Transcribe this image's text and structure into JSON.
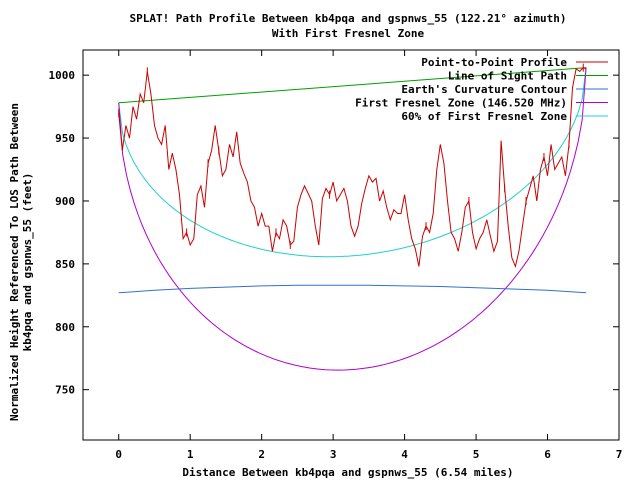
{
  "chart_data": {
    "type": "line",
    "title": "SPLAT! Path Profile Between kb4pqa and gspnws_55 (122.21° azimuth)",
    "subtitle": "With First Fresnel Zone",
    "xlabel": "Distance Between kb4pqa and gspnws_55 (6.54 miles)",
    "ylabel_line1": "Normalized Height Referenced To LOS Path Between",
    "ylabel_line2": "kb4pqa and gspnws_55 (feet)",
    "xlim": [
      -0.5,
      7
    ],
    "ylim": [
      710,
      1020
    ],
    "xticks": [
      0,
      1,
      2,
      3,
      4,
      5,
      6,
      7
    ],
    "yticks": [
      750,
      800,
      850,
      900,
      950,
      1000
    ],
    "grid": false,
    "legend_position": "top-right",
    "series": [
      {
        "name": "Point-to-Point Profile",
        "color": "#cc0000",
        "x": [
          0.0,
          0.05,
          0.1,
          0.15,
          0.2,
          0.25,
          0.3,
          0.35,
          0.4,
          0.45,
          0.5,
          0.55,
          0.6,
          0.65,
          0.7,
          0.75,
          0.8,
          0.85,
          0.9,
          0.95,
          1.0,
          1.05,
          1.1,
          1.15,
          1.2,
          1.25,
          1.3,
          1.35,
          1.4,
          1.45,
          1.5,
          1.55,
          1.6,
          1.65,
          1.7,
          1.75,
          1.8,
          1.85,
          1.9,
          1.95,
          2.0,
          2.05,
          2.1,
          2.15,
          2.2,
          2.25,
          2.3,
          2.35,
          2.4,
          2.45,
          2.5,
          2.55,
          2.6,
          2.65,
          2.7,
          2.75,
          2.8,
          2.85,
          2.9,
          2.95,
          3.0,
          3.05,
          3.1,
          3.15,
          3.2,
          3.25,
          3.3,
          3.35,
          3.4,
          3.45,
          3.5,
          3.55,
          3.6,
          3.65,
          3.7,
          3.75,
          3.8,
          3.85,
          3.9,
          3.95,
          4.0,
          4.05,
          4.1,
          4.15,
          4.2,
          4.25,
          4.3,
          4.35,
          4.4,
          4.45,
          4.5,
          4.55,
          4.6,
          4.65,
          4.7,
          4.75,
          4.8,
          4.85,
          4.9,
          4.95,
          5.0,
          5.05,
          5.1,
          5.15,
          5.2,
          5.25,
          5.3,
          5.35,
          5.4,
          5.45,
          5.5,
          5.55,
          5.6,
          5.65,
          5.7,
          5.75,
          5.8,
          5.85,
          5.9,
          5.95,
          6.0,
          6.05,
          6.1,
          6.15,
          6.2,
          6.25,
          6.3,
          6.35,
          6.4,
          6.45,
          6.5,
          6.54
        ],
        "y": [
          970,
          940,
          960,
          950,
          975,
          965,
          985,
          978,
          1003,
          985,
          960,
          950,
          945,
          960,
          925,
          938,
          925,
          905,
          870,
          875,
          865,
          870,
          905,
          912,
          895,
          930,
          940,
          960,
          940,
          920,
          925,
          945,
          935,
          955,
          930,
          922,
          915,
          900,
          895,
          880,
          890,
          880,
          880,
          860,
          875,
          870,
          885,
          880,
          865,
          868,
          895,
          905,
          912,
          906,
          900,
          880,
          865,
          902,
          910,
          905,
          915,
          900,
          905,
          910,
          900,
          880,
          872,
          880,
          898,
          910,
          920,
          915,
          918,
          900,
          908,
          895,
          885,
          893,
          890,
          890,
          905,
          885,
          870,
          862,
          848,
          872,
          880,
          875,
          890,
          925,
          945,
          930,
          900,
          875,
          870,
          860,
          875,
          895,
          900,
          875,
          862,
          870,
          875,
          885,
          872,
          860,
          868,
          948,
          910,
          880,
          855,
          848,
          860,
          880,
          900,
          910,
          920,
          900,
          925,
          935,
          920,
          945,
          925,
          930,
          935,
          920,
          945,
          990,
          1005,
          1003,
          1006,
          1005
        ],
        "marker_x": [
          0.0,
          0.4,
          0.95,
          1.25,
          1.4,
          2.2,
          2.4,
          2.95,
          4.3,
          4.9,
          5.4,
          5.7,
          5.95,
          6.3,
          6.5
        ]
      },
      {
        "name": "Line of Sight Path",
        "color": "#00a000",
        "x": [
          0,
          6.54
        ],
        "y": [
          978,
          1006
        ]
      },
      {
        "name": "Earth's Curvature Contour",
        "color": "#3070d0",
        "x": [
          0,
          0.5,
          1.0,
          1.5,
          2.0,
          2.5,
          3.0,
          3.5,
          4.0,
          4.5,
          5.0,
          5.5,
          6.0,
          6.54
        ],
        "y": [
          827,
          829,
          830.5,
          831.5,
          832.5,
          833,
          833,
          833,
          832.5,
          832,
          831,
          830,
          829,
          827
        ]
      },
      {
        "name": "First Fresnel Zone (146.520 MHz)",
        "color": "#b000d0",
        "fresnel_clearance_ft": 226,
        "x_start": 0,
        "x_end": 6.54
      },
      {
        "name": "60% of First Fresnel Zone",
        "color": "#20d0d0",
        "fresnel_clearance_ft": 135.6,
        "x_start": 0,
        "x_end": 6.54
      }
    ]
  }
}
